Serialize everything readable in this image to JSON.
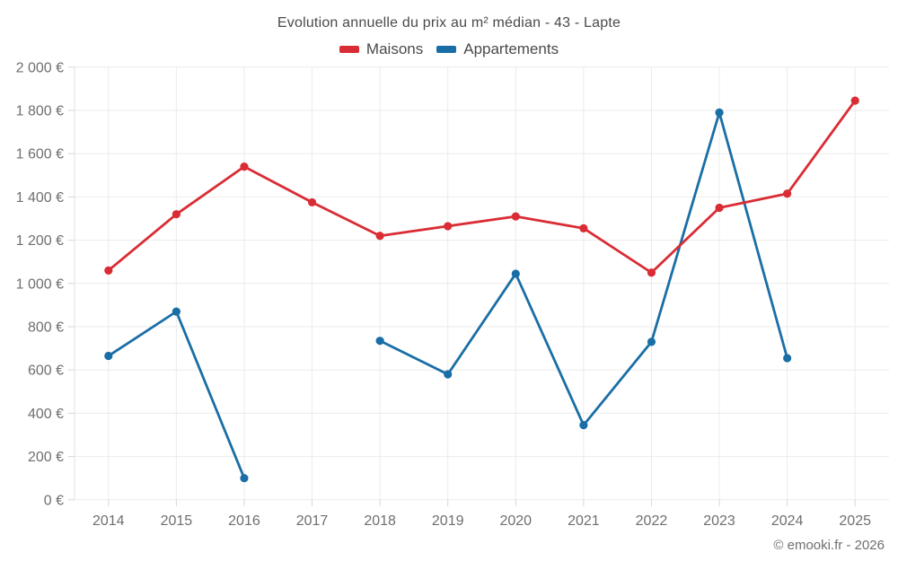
{
  "chart": {
    "title": "Evolution annuelle du prix au m² médian - 43 - Lapte"
  },
  "footer": {
    "text": "© emooki.fr - 2026"
  },
  "chart_data": {
    "type": "line",
    "title": "Evolution annuelle du prix au m² médian - 43 - Lapte",
    "categories": [
      "2014",
      "2015",
      "2016",
      "2017",
      "2018",
      "2019",
      "2020",
      "2021",
      "2022",
      "2023",
      "2024",
      "2025"
    ],
    "series": [
      {
        "name": "Maisons",
        "color": "#da2c34",
        "values": [
          1060,
          1320,
          1540,
          1375,
          1220,
          1265,
          1310,
          1255,
          1050,
          1350,
          1415,
          1845
        ]
      },
      {
        "name": "Appartements",
        "color": "#1a6ea6",
        "values": [
          665,
          870,
          100,
          null,
          735,
          580,
          1045,
          345,
          730,
          1790,
          655,
          null
        ]
      }
    ],
    "xlabel": "",
    "ylabel": "",
    "ylim": [
      0,
      2000
    ],
    "ytick_step": 200,
    "ytick_suffix": " €",
    "grid": true,
    "legend_position": "top",
    "marker_radius": 4.6,
    "line_width": 2.8
  }
}
